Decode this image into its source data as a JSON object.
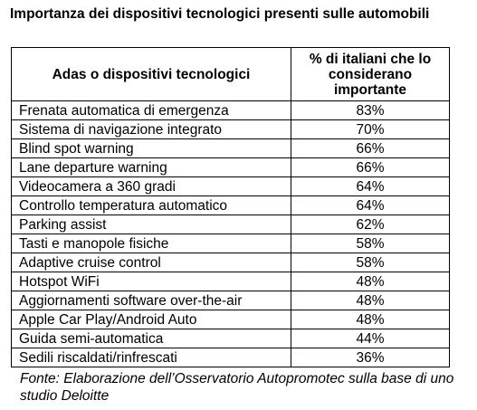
{
  "title": "Importanza dei dispositivi tecnologici presenti sulle automobili",
  "table": {
    "headers": [
      "Adas o dispositivi tecnologici",
      "% di italiani che lo considerano importante"
    ],
    "rows": [
      [
        "Frenata automatica di emergenza",
        "83%"
      ],
      [
        "Sistema di navigazione integrato",
        "70%"
      ],
      [
        "Blind spot warning",
        "66%"
      ],
      [
        "Lane departure warning",
        "66%"
      ],
      [
        "Videocamera a 360 gradi",
        "64%"
      ],
      [
        "Controllo temperatura automatico",
        "64%"
      ],
      [
        "Parking assist",
        "62%"
      ],
      [
        "Tasti e manopole fisiche",
        "58%"
      ],
      [
        "Adaptive cruise control",
        "58%"
      ],
      [
        "Hotspot WiFi",
        "48%"
      ],
      [
        "Aggiornamenti software over-the-air",
        "48%"
      ],
      [
        "Apple Car Play/Android Auto",
        "48%"
      ],
      [
        "Guida semi-automatica",
        "44%"
      ],
      [
        "Sedili riscaldati/rinfrescati",
        "36%"
      ]
    ]
  },
  "source": "Fonte: Elaborazione dell’Osservatorio Autopromotec sulla base di uno studio Deloitte"
}
